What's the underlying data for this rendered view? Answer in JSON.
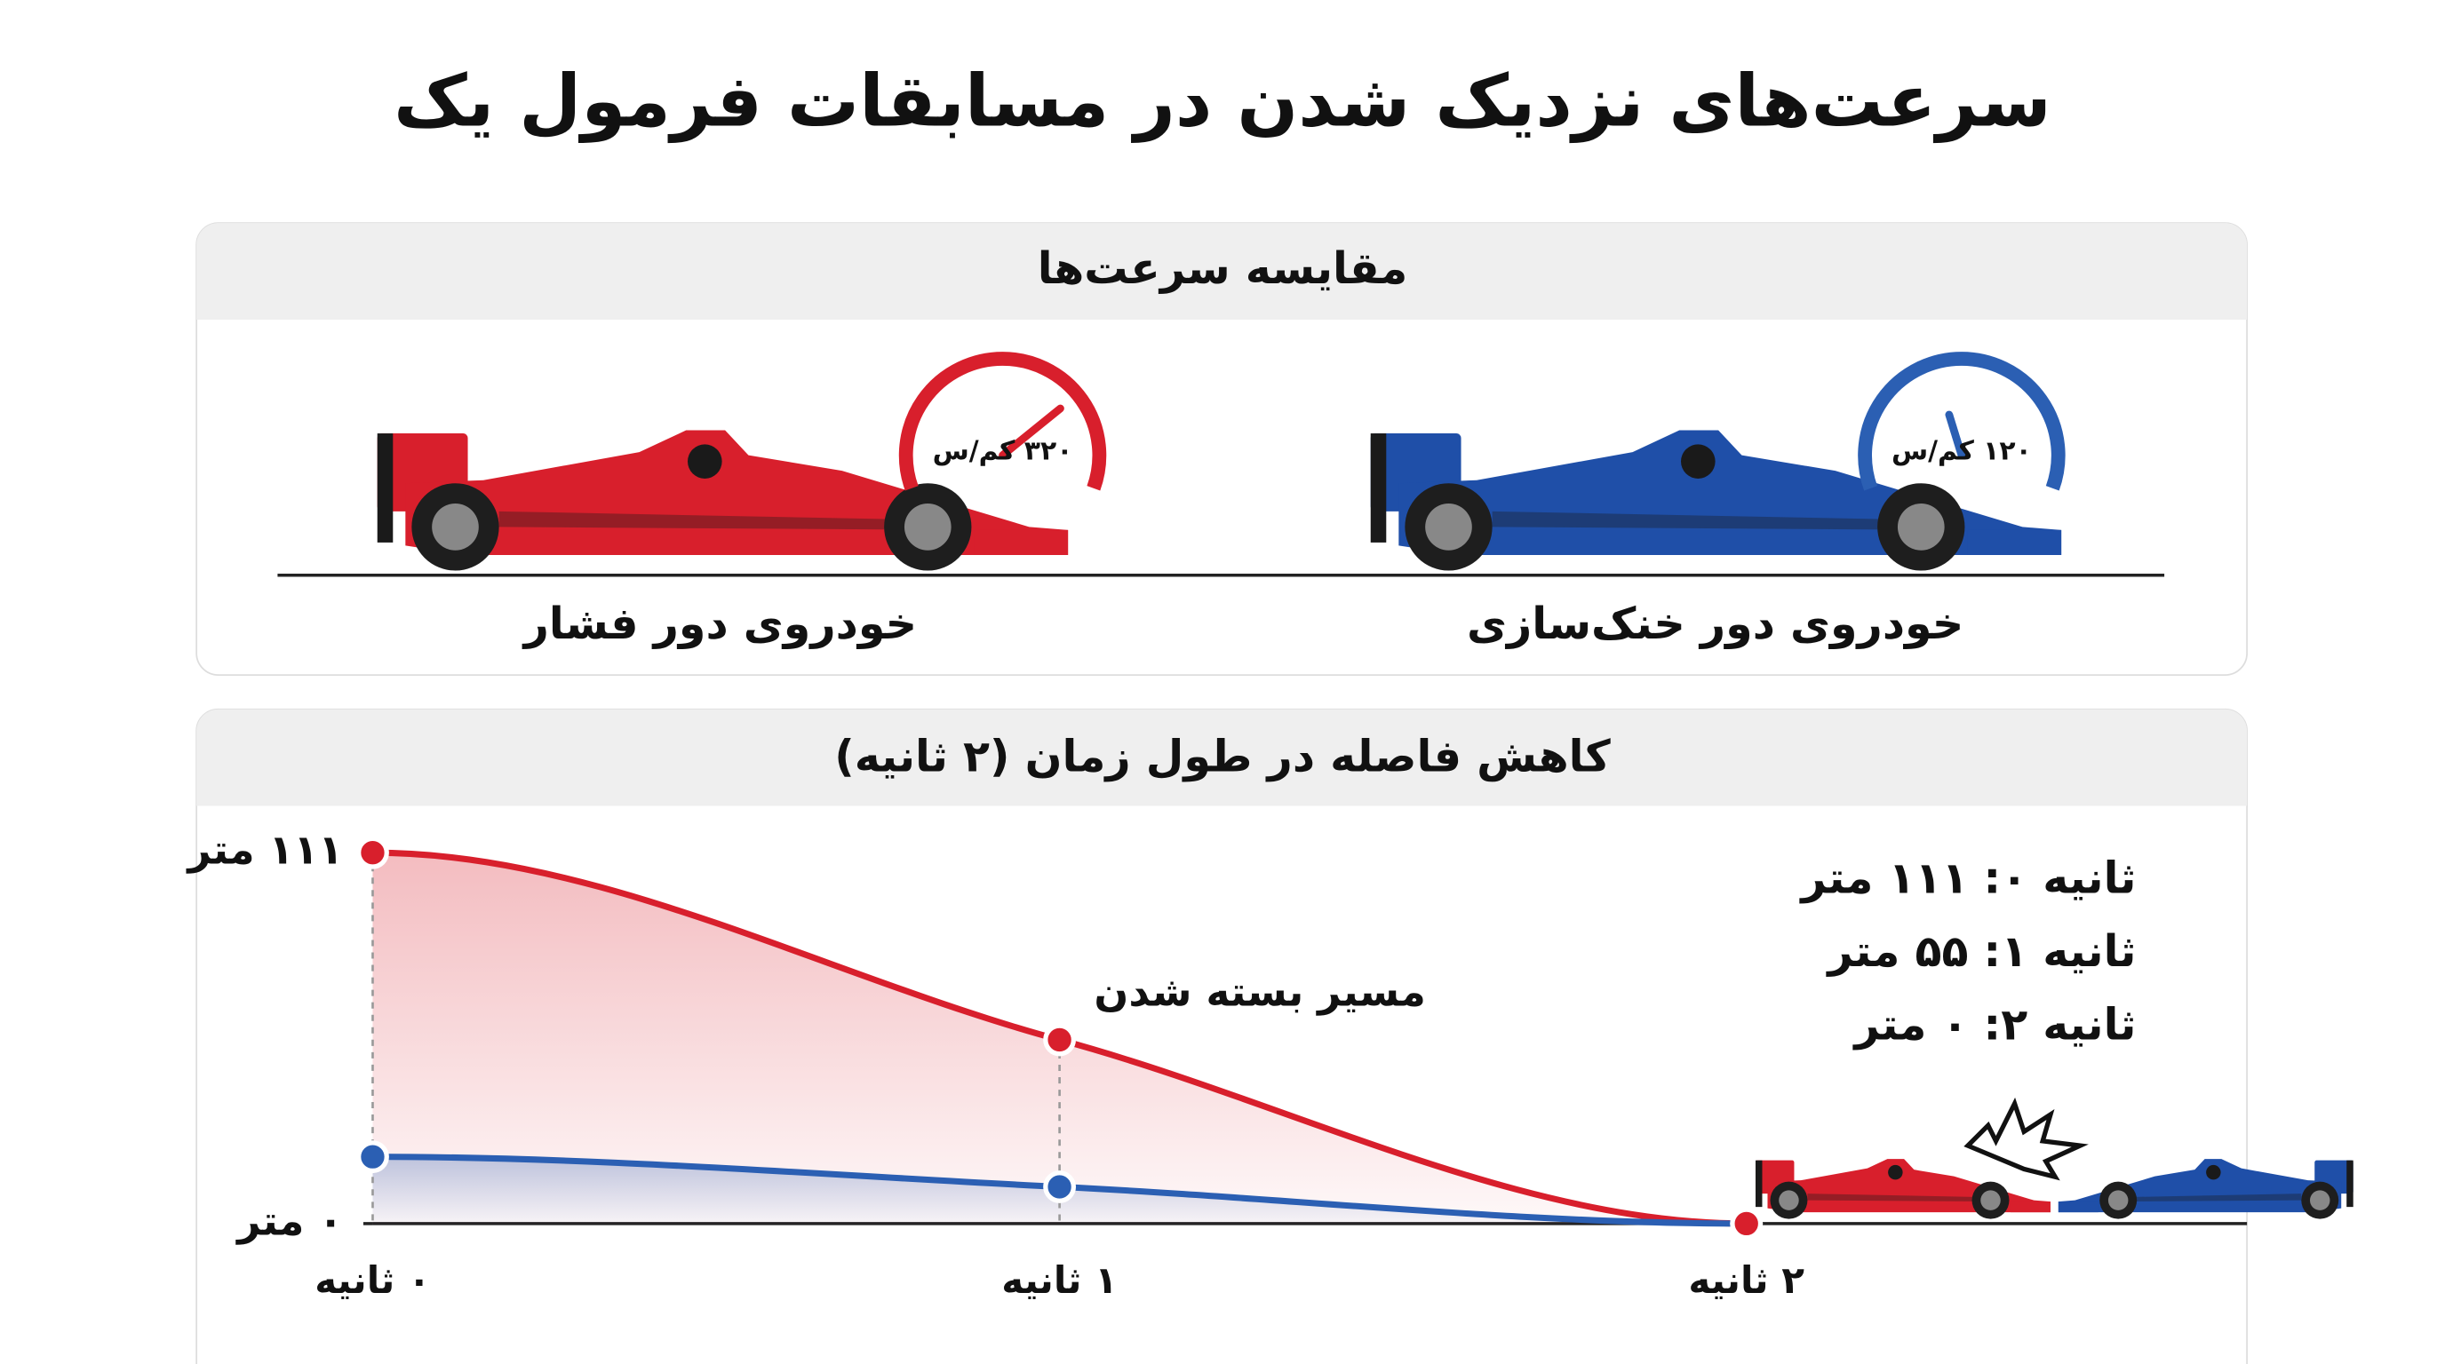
{
  "title": "سرعت‌های نزدیک شدن در مسابقات فرمول یک",
  "speed_panel": {
    "title": "مقایسه سرعت‌ها",
    "cars": [
      {
        "label": "خودروی دور فشار",
        "speed": "۳۲۰ کم/س"
      },
      {
        "label": "خودروی دور خنک‌سازی",
        "speed": "۱۲۰ کم/س"
      }
    ]
  },
  "chart_data": {
    "type": "line",
    "title": "کاهش فاصله در طول زمان (۲ ثانیه)",
    "categories": [
      "۰ ثانیه",
      "۱ ثانیه",
      "۲ ثانیه"
    ],
    "series": [
      {
        "color": "#d81f2c",
        "values": [
          111,
          55,
          0
        ]
      },
      {
        "color": "#2b5fb3",
        "values": [
          20,
          11,
          0
        ]
      }
    ],
    "ylim": [
      0,
      111
    ],
    "yticks": [
      {
        "value": 0,
        "label": "۰ متر"
      },
      {
        "value": 111,
        "label": "۱۱۱ متر"
      }
    ],
    "annotations": [
      "مسیر بسته شدن",
      "ثانیه ۰: ۱۱۱ متر",
      "ثانیه ۱: ۵۵ متر",
      "ثانیه ۲: ۰ متر"
    ]
  }
}
